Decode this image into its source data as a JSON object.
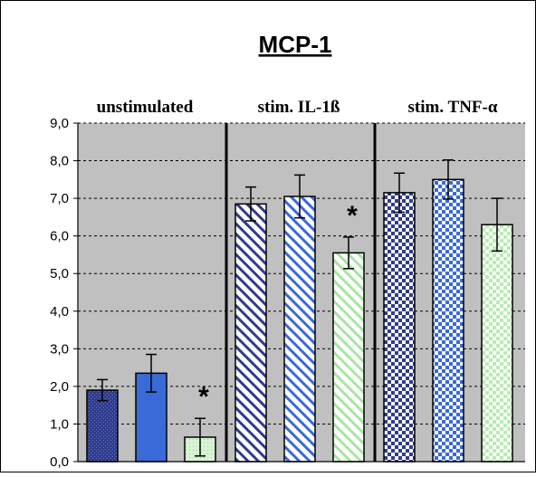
{
  "chart_data": {
    "type": "bar",
    "title": "MCP-1",
    "xlabel": "",
    "ylabel": "",
    "ylim": [
      0,
      9
    ],
    "ytick_labels": [
      "0,0",
      "1,0",
      "2,0",
      "3,0",
      "4,0",
      "5,0",
      "6,0",
      "7,0",
      "8,0",
      "9,0"
    ],
    "grid": true,
    "legend": "none",
    "groups": [
      "unstimulated",
      "stim. IL-1ß",
      "stim. TNF-α"
    ],
    "bars_per_group": 3,
    "values": [
      [
        1.9,
        2.35,
        0.65
      ],
      [
        6.85,
        7.05,
        5.55
      ],
      [
        7.15,
        7.5,
        6.3
      ]
    ],
    "errors": [
      [
        0.28,
        0.5,
        0.5
      ],
      [
        0.45,
        0.57,
        0.42
      ],
      [
        0.52,
        0.52,
        0.7
      ]
    ],
    "significance": [
      [
        false,
        false,
        true
      ],
      [
        false,
        false,
        true
      ],
      [
        false,
        false,
        false
      ]
    ],
    "significance_marker": "*",
    "colors": {
      "plot_background": "#c0c0c0",
      "bar_1": "#2f3c8c",
      "bar_2": "#3a6ad8",
      "bar_3": "#d8f4d4",
      "separator": "#000000"
    }
  }
}
